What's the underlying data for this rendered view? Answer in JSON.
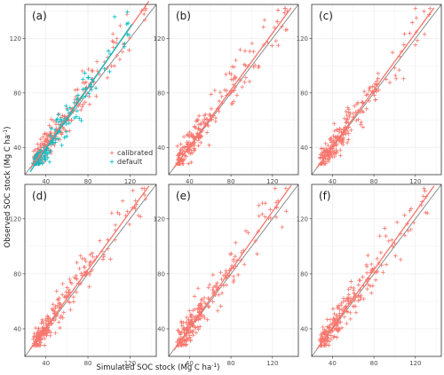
{
  "figure": {
    "ylabel_parts": [
      "Observed SOC stock (Mg C ha",
      "-1",
      ")"
    ],
    "xlabel_parts": [
      "Simulated SOC stock (Mg C ha",
      "-1",
      ")"
    ],
    "colors": {
      "calibrated": "#f8766d",
      "default": "#00bfc4",
      "identity": "#808080",
      "grid": "#ebebeb",
      "frame": "#333333"
    }
  },
  "chart_data": [
    {
      "type": "scatter",
      "label": "(a)",
      "xlim": [
        20,
        145
      ],
      "ylim": [
        20,
        145
      ],
      "xticks": [
        40,
        80,
        120
      ],
      "yticks": [
        40,
        80,
        120
      ],
      "grid": true,
      "legend": {
        "position": "bottom-right",
        "entries": [
          "calibrated",
          "default"
        ]
      },
      "identity_line": true,
      "series": [
        {
          "name": "calibrated",
          "fit": {
            "slope": 1.09,
            "intercept": -3
          }
        },
        {
          "name": "default",
          "fit": {
            "slope": 1.12,
            "intercept": -6
          }
        }
      ]
    },
    {
      "type": "scatter",
      "label": "(b)",
      "xlim": [
        20,
        145
      ],
      "ylim": [
        20,
        145
      ],
      "xticks": [
        40,
        80,
        120
      ],
      "yticks": [
        40,
        80,
        120
      ],
      "grid": true,
      "identity_line": true,
      "series": [
        {
          "name": "calibrated",
          "fit": {
            "slope": 1.04,
            "intercept": -1
          }
        }
      ]
    },
    {
      "type": "scatter",
      "label": "(c)",
      "xlim": [
        20,
        145
      ],
      "ylim": [
        20,
        145
      ],
      "xticks": [
        40,
        80,
        120
      ],
      "yticks": [
        40,
        80,
        120
      ],
      "grid": true,
      "identity_line": true,
      "series": [
        {
          "name": "calibrated",
          "fit": {
            "slope": 1.04,
            "intercept": -1
          }
        }
      ]
    },
    {
      "type": "scatter",
      "label": "(d)",
      "xlim": [
        20,
        145
      ],
      "ylim": [
        20,
        145
      ],
      "xticks": [
        40,
        80,
        120
      ],
      "yticks": [
        40,
        80,
        120
      ],
      "grid": true,
      "identity_line": true,
      "series": [
        {
          "name": "calibrated",
          "fit": {
            "slope": 1.05,
            "intercept": -1
          }
        }
      ]
    },
    {
      "type": "scatter",
      "label": "(e)",
      "xlim": [
        20,
        145
      ],
      "ylim": [
        20,
        145
      ],
      "xticks": [
        40,
        80,
        120
      ],
      "yticks": [
        40,
        80,
        120
      ],
      "grid": true,
      "identity_line": true,
      "series": [
        {
          "name": "calibrated",
          "fit": {
            "slope": 1.06,
            "intercept": -2
          }
        }
      ]
    },
    {
      "type": "scatter",
      "label": "(f)",
      "xlim": [
        20,
        145
      ],
      "ylim": [
        20,
        145
      ],
      "xticks": [
        40,
        80,
        120
      ],
      "yticks": [
        40,
        80,
        120
      ],
      "grid": true,
      "identity_line": true,
      "series": [
        {
          "name": "calibrated",
          "fit": {
            "slope": 1.05,
            "intercept": -1
          }
        }
      ]
    }
  ]
}
